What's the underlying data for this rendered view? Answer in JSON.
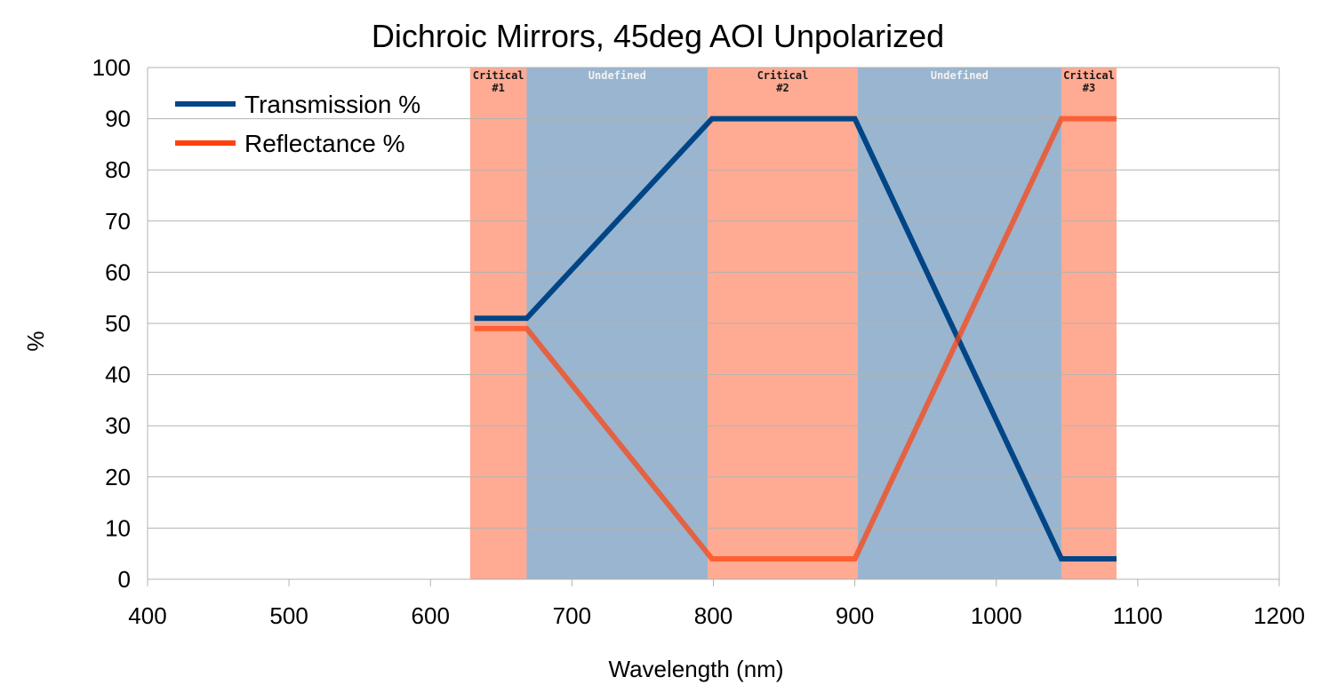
{
  "chart_data": {
    "type": "line",
    "title": "Dichroic Mirrors, 45deg AOI Unpolarized",
    "xlabel": "Wavelength (nm)",
    "ylabel": "%",
    "xlim": [
      400,
      1200
    ],
    "ylim": [
      0,
      100
    ],
    "xticks": [
      400,
      500,
      600,
      700,
      800,
      900,
      1000,
      1100,
      1200
    ],
    "yticks": [
      0,
      10,
      20,
      30,
      40,
      50,
      60,
      70,
      80,
      90,
      100
    ],
    "grid": "horizontal",
    "legend_position": "top-left",
    "regions": [
      {
        "label": [
          "Critical",
          "#1"
        ],
        "x": [
          628,
          668
        ],
        "kind": "critical"
      },
      {
        "label": [
          "Undefined"
        ],
        "x": [
          668,
          796
        ],
        "kind": "undefined"
      },
      {
        "label": [
          "Critical",
          "#2"
        ],
        "x": [
          796,
          902
        ],
        "kind": "critical"
      },
      {
        "label": [
          "Undefined"
        ],
        "x": [
          902,
          1046
        ],
        "kind": "undefined"
      },
      {
        "label": [
          "Critical",
          "#3"
        ],
        "x": [
          1046,
          1085
        ],
        "kind": "critical"
      }
    ],
    "series": [
      {
        "name": "Transmission %",
        "color": "#004586",
        "x": [
          631,
          668,
          799,
          900,
          1046,
          1085
        ],
        "y": [
          51,
          51,
          90,
          90,
          4,
          4
        ]
      },
      {
        "name": "Reflectance %",
        "color": "#ff420e",
        "x": [
          631,
          668,
          799,
          900,
          1046,
          1085
        ],
        "y": [
          49,
          49,
          4,
          4,
          90,
          90
        ]
      }
    ],
    "colors": {
      "critical": "#ff420e",
      "undefined": "#004586",
      "grid": "#b3b3b3"
    }
  }
}
